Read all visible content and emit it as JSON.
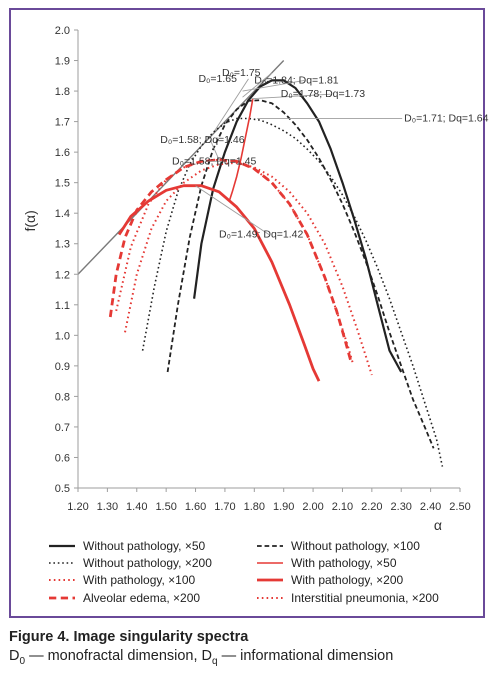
{
  "chart_data": {
    "type": "line",
    "title": "",
    "xlabel": "α",
    "ylabel": "f(α)",
    "xlim": [
      1.2,
      2.5
    ],
    "ylim": [
      0.5,
      2.0
    ],
    "x_ticks": [
      "1.20",
      "1.30",
      "1.40",
      "1.50",
      "1.60",
      "1.70",
      "1.80",
      "1.90",
      "2.00",
      "2.10",
      "2.20",
      "2.30",
      "2.40",
      "2.50"
    ],
    "y_ticks": [
      "0.5",
      "0.6",
      "0.7",
      "0.8",
      "0.9",
      "1.0",
      "1.1",
      "1.2",
      "1.3",
      "1.4",
      "1.5",
      "1.6",
      "1.7",
      "1.8",
      "1.9",
      "2.0"
    ],
    "grid": false,
    "legend_position": "bottom",
    "reference_line": {
      "x": [
        1.2,
        1.9
      ],
      "y": [
        1.2,
        1.9
      ]
    },
    "series": [
      {
        "name": "Without pathology, ×50",
        "color": "#222222",
        "style": "solid",
        "width": 2.2,
        "x": [
          1.595,
          1.62,
          1.66,
          1.7,
          1.74,
          1.78,
          1.82,
          1.86,
          1.9,
          1.94,
          1.98,
          2.02,
          2.06,
          2.1,
          2.14,
          2.18,
          2.22,
          2.26,
          2.3
        ],
        "y": [
          1.12,
          1.3,
          1.48,
          1.6,
          1.7,
          1.77,
          1.815,
          1.835,
          1.835,
          1.81,
          1.76,
          1.7,
          1.61,
          1.5,
          1.38,
          1.25,
          1.1,
          0.95,
          0.88
        ]
      },
      {
        "name": "Without pathology, ×100",
        "color": "#222222",
        "style": "dashed",
        "width": 1.8,
        "x": [
          1.505,
          1.54,
          1.58,
          1.62,
          1.66,
          1.7,
          1.74,
          1.78,
          1.82,
          1.86,
          1.9,
          1.94,
          1.98,
          2.02,
          2.06,
          2.1,
          2.14,
          2.18,
          2.22,
          2.26,
          2.3,
          2.34,
          2.38,
          2.41
        ],
        "y": [
          0.88,
          1.1,
          1.32,
          1.49,
          1.61,
          1.69,
          1.74,
          1.768,
          1.77,
          1.76,
          1.73,
          1.69,
          1.64,
          1.58,
          1.51,
          1.43,
          1.34,
          1.24,
          1.13,
          1.01,
          0.9,
          0.79,
          0.7,
          0.63
        ]
      },
      {
        "name": "Without pathology, ×200",
        "color": "#222222",
        "style": "dotted",
        "width": 1.6,
        "x": [
          1.42,
          1.46,
          1.5,
          1.54,
          1.58,
          1.62,
          1.66,
          1.7,
          1.74,
          1.78,
          1.82,
          1.86,
          1.9,
          1.94,
          1.98,
          2.02,
          2.06,
          2.1,
          2.14,
          2.18,
          2.22,
          2.26,
          2.3,
          2.34,
          2.38,
          2.42,
          2.44
        ],
        "y": [
          0.95,
          1.16,
          1.34,
          1.47,
          1.56,
          1.62,
          1.665,
          1.695,
          1.71,
          1.71,
          1.705,
          1.69,
          1.67,
          1.645,
          1.61,
          1.57,
          1.52,
          1.46,
          1.39,
          1.31,
          1.22,
          1.12,
          1.01,
          0.9,
          0.78,
          0.66,
          0.57
        ]
      },
      {
        "name": "With pathology, ×50",
        "color": "#e53935",
        "style": "solid",
        "width": 1.6,
        "x": [
          1.795,
          1.785,
          1.77,
          1.755,
          1.74,
          1.725,
          1.715
        ],
        "y": [
          1.775,
          1.72,
          1.65,
          1.58,
          1.52,
          1.47,
          1.44
        ]
      },
      {
        "name": "With pathology, ×100",
        "color": "#e53935",
        "style": "dotted",
        "width": 2.0,
        "x": [
          1.33,
          1.38,
          1.44,
          1.5,
          1.56,
          1.62,
          1.68,
          1.74,
          1.8,
          1.86,
          1.92,
          1.98,
          2.04,
          2.08,
          2.12,
          2.135
        ],
        "y": [
          1.08,
          1.29,
          1.43,
          1.51,
          1.55,
          1.57,
          1.575,
          1.57,
          1.545,
          1.5,
          1.43,
          1.33,
          1.19,
          1.08,
          0.96,
          0.91
        ]
      },
      {
        "name": "With pathology, ×200",
        "color": "#e53935",
        "style": "solid",
        "width": 2.8,
        "x": [
          1.34,
          1.38,
          1.44,
          1.5,
          1.56,
          1.62,
          1.68,
          1.74,
          1.8,
          1.86,
          1.92,
          1.97,
          2.0,
          2.02
        ],
        "y": [
          1.33,
          1.39,
          1.44,
          1.475,
          1.49,
          1.49,
          1.47,
          1.42,
          1.35,
          1.24,
          1.1,
          0.97,
          0.89,
          0.85
        ]
      },
      {
        "name": "Alveolar edema, ×200",
        "color": "#e53935",
        "style": "dashed",
        "width": 2.8,
        "x": [
          1.31,
          1.33,
          1.36,
          1.4,
          1.45,
          1.5,
          1.56,
          1.62,
          1.68,
          1.74,
          1.8,
          1.86,
          1.92,
          1.98,
          2.04,
          2.08,
          2.11,
          2.13
        ],
        "y": [
          1.06,
          1.2,
          1.32,
          1.41,
          1.47,
          1.51,
          1.55,
          1.57,
          1.575,
          1.57,
          1.545,
          1.5,
          1.43,
          1.33,
          1.19,
          1.08,
          0.98,
          0.91
        ]
      },
      {
        "name": "Interstitial pneumonia, ×200",
        "color": "#e53935",
        "style": "dotted",
        "width": 2.0,
        "x": [
          1.36,
          1.4,
          1.45,
          1.5,
          1.56,
          1.62,
          1.68,
          1.74,
          1.8,
          1.86,
          1.92,
          1.98,
          2.04,
          2.1,
          2.15,
          2.18,
          2.2
        ],
        "y": [
          1.01,
          1.2,
          1.35,
          1.44,
          1.5,
          1.54,
          1.56,
          1.565,
          1.55,
          1.52,
          1.47,
          1.4,
          1.3,
          1.16,
          1.02,
          0.93,
          0.87
        ]
      }
    ],
    "annotations": [
      {
        "text": "D₀=1.84; Dq=1.81",
        "at": [
          1.8,
          1.825
        ],
        "leader_end": [
          1.76,
          1.8
        ]
      },
      {
        "text": "D₀=1.75",
        "at": [
          1.69,
          1.85
        ],
        "leader_end": [
          1.76,
          1.78
        ]
      },
      {
        "text": "D₀=1.65",
        "at": [
          1.61,
          1.83
        ],
        "leader_end": [
          1.665,
          1.67
        ]
      },
      {
        "text": "D₀=1.78; Dq=1.73",
        "at": [
          1.89,
          1.78
        ],
        "leader_end": [
          1.79,
          1.775
        ]
      },
      {
        "text": "D₀=1.58; Dq=1.46",
        "at": [
          1.48,
          1.63
        ],
        "leader_end": [
          1.68,
          1.575
        ]
      },
      {
        "text": "D₀=1.71; Dq=1.64",
        "at": [
          2.31,
          1.7
        ],
        "leader_end": [
          1.81,
          1.71
        ]
      },
      {
        "text": "D₀=1.58; Dq=1.45",
        "at": [
          1.52,
          1.56
        ],
        "leader_end": [
          1.64,
          1.57
        ]
      },
      {
        "text": "D₀=1.49; Dq=1.42",
        "at": [
          1.68,
          1.32
        ],
        "leader_end": [
          1.6,
          1.49
        ]
      }
    ]
  },
  "caption": {
    "title": "Figure 4. Image singularity spectra",
    "desc_parts": [
      "D",
      "0",
      " — monofractal dimension, D",
      "q",
      " — informational dimension"
    ]
  }
}
